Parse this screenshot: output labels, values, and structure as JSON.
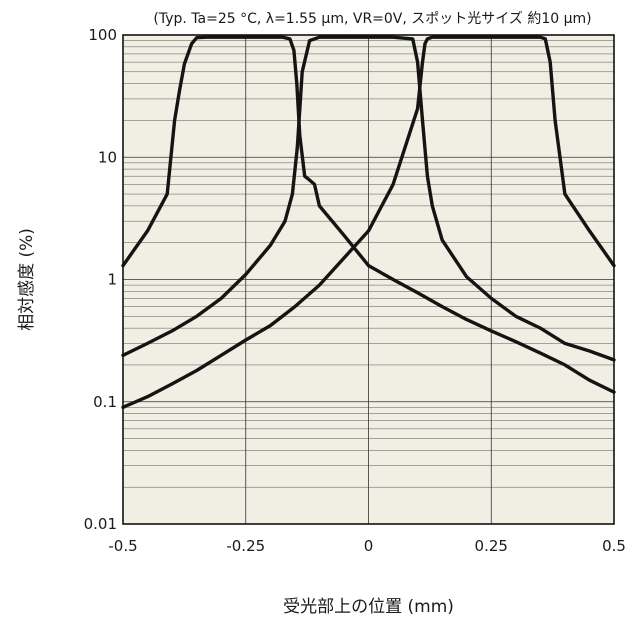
{
  "chart_data": {
    "type": "line",
    "title": "(Typ. Ta=25 °C, λ=1.55 μm, VR=0V, スポット光サイズ 約10 μm)",
    "xlabel": "受光部上の位置 (mm)",
    "ylabel": "相対感度 (%)",
    "xlim": [
      -0.5,
      0.5
    ],
    "ylim": [
      0.01,
      100
    ],
    "yscale": "log",
    "grid": true,
    "x_ticks": [
      "-0.5",
      "-0.25",
      "0",
      "0.25",
      "0.5"
    ],
    "y_ticks": [
      "0.01",
      "0.1",
      "1",
      "10",
      "100"
    ],
    "series": [
      {
        "x": [
          -0.5,
          -0.45,
          -0.41,
          -0.395,
          -0.385,
          -0.375,
          -0.36,
          -0.35,
          -0.33,
          -0.3,
          -0.25,
          -0.2,
          -0.175,
          -0.16,
          -0.152,
          -0.146,
          -0.14,
          -0.13,
          -0.12,
          -0.11,
          -0.1,
          -0.05,
          0,
          0.05,
          0.1,
          0.15,
          0.2,
          0.25,
          0.3,
          0.35,
          0.4,
          0.45,
          0.5
        ],
        "y": [
          1.3,
          2.5,
          5,
          20,
          35,
          58,
          85,
          95,
          96,
          96,
          96,
          96,
          96,
          93,
          75,
          40,
          15,
          7,
          6.5,
          6,
          4,
          2.3,
          1.3,
          1.0,
          0.78,
          0.6,
          0.47,
          0.38,
          0.31,
          0.25,
          0.2,
          0.15,
          0.12
        ]
      },
      {
        "x": [
          -0.5,
          -0.45,
          -0.4,
          -0.35,
          -0.3,
          -0.25,
          -0.2,
          -0.17,
          -0.155,
          -0.145,
          -0.135,
          -0.12,
          -0.1,
          -0.05,
          0,
          0.05,
          0.09,
          0.1,
          0.11,
          0.12,
          0.13,
          0.15,
          0.2,
          0.25,
          0.3,
          0.35,
          0.4,
          0.45,
          0.5
        ],
        "y": [
          0.24,
          0.3,
          0.38,
          0.5,
          0.7,
          1.1,
          1.9,
          3,
          5,
          12,
          50,
          90,
          96,
          96,
          96,
          96,
          93,
          60,
          20,
          7,
          4,
          2.1,
          1.05,
          0.7,
          0.5,
          0.4,
          0.3,
          0.26,
          0.22
        ]
      },
      {
        "x": [
          -0.5,
          -0.45,
          -0.4,
          -0.35,
          -0.3,
          -0.25,
          -0.2,
          -0.15,
          -0.1,
          -0.05,
          0,
          0.05,
          0.1,
          0.11,
          0.115,
          0.12,
          0.13,
          0.15,
          0.2,
          0.25,
          0.3,
          0.35,
          0.36,
          0.37,
          0.38,
          0.4,
          0.45,
          0.5
        ],
        "y": [
          0.09,
          0.11,
          0.14,
          0.18,
          0.24,
          0.32,
          0.42,
          0.6,
          0.9,
          1.5,
          2.5,
          6,
          25,
          60,
          85,
          93,
          96,
          96,
          96,
          96,
          96,
          96,
          93,
          60,
          20,
          5,
          2.5,
          1.3
        ]
      }
    ]
  }
}
